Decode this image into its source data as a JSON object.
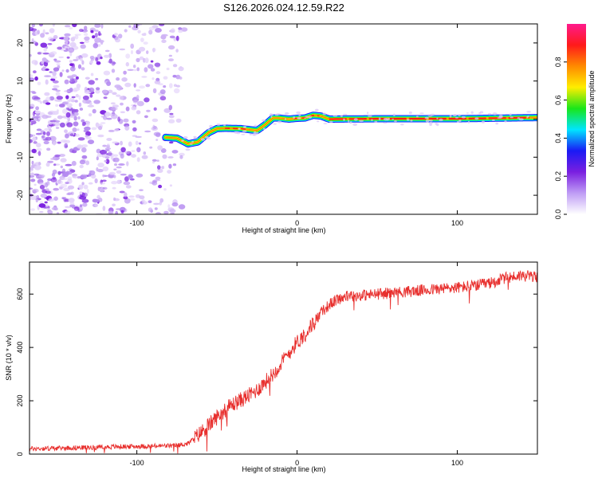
{
  "figure": {
    "title": "S126.2026.024.12.59.R22"
  },
  "chart_data": [
    {
      "type": "heatmap",
      "title": "S126.2026.024.12.59.R22",
      "xlabel": "Height of straight line (km)",
      "ylabel": "Frequency (Hz)",
      "xlim": [
        -167,
        150
      ],
      "ylim": [
        -25,
        25
      ],
      "x_ticks": [
        -100,
        0,
        100
      ],
      "x_tick_labels": [
        "-100",
        "0",
        "100"
      ],
      "y_ticks": [
        -20,
        -10,
        0,
        10,
        20
      ],
      "y_tick_labels": [
        "-20",
        "-10",
        "0",
        "10",
        "20"
      ],
      "noise_region_x": [
        -167,
        -70
      ],
      "ridge": {
        "x": [
          -82,
          -75,
          -68,
          -62,
          -55,
          -50,
          -45,
          -35,
          -25,
          -20,
          -15,
          -12,
          -5,
          0,
          5,
          10,
          15,
          20,
          50,
          100,
          150
        ],
        "y": [
          -4.8,
          -5.0,
          -6.5,
          -6.0,
          -3.5,
          -2.5,
          -2.4,
          -2.5,
          -3.0,
          -1.5,
          0.3,
          0.3,
          0.0,
          0.2,
          0.3,
          1.0,
          0.8,
          0.0,
          0.1,
          0.1,
          0.4
        ]
      },
      "colorbar": {
        "label": "Normalized spectral amplitude",
        "range": [
          0,
          1
        ],
        "ticks": [
          0.0,
          0.2,
          0.4,
          0.6,
          0.8
        ],
        "tick_labels": [
          "0.0",
          "0.2",
          "0.4",
          "0.6",
          "0.8"
        ],
        "colors": [
          "#ffffff",
          "#bf9cf5",
          "#7a1fe0",
          "#1a1af5",
          "#00e5ff",
          "#19e619",
          "#ffee00",
          "#ff8a00",
          "#ff1a1a",
          "#ff1a8c"
        ]
      }
    },
    {
      "type": "line",
      "xlabel": "Height of straight line (km)",
      "ylabel": "SNR (10 * v/v)",
      "xlim": [
        -167,
        150
      ],
      "ylim": [
        0,
        720
      ],
      "x_ticks": [
        -100,
        0,
        100
      ],
      "x_tick_labels": [
        "-100",
        "0",
        "100"
      ],
      "y_ticks": [
        0,
        200,
        400,
        600
      ],
      "y_tick_labels": [
        "0",
        "200",
        "400",
        "600"
      ],
      "series": [
        {
          "name": "SNR",
          "color": "#e8302e",
          "x": [
            -167,
            -150,
            -130,
            -110,
            -90,
            -75,
            -68,
            -62,
            -55,
            -48,
            -42,
            -36,
            -30,
            -25,
            -20,
            -15,
            -10,
            -5,
            0,
            5,
            10,
            15,
            20,
            25,
            30,
            40,
            50,
            60,
            70,
            80,
            90,
            100,
            110,
            120,
            130,
            140,
            150
          ],
          "y": [
            20,
            22,
            25,
            28,
            30,
            32,
            40,
            70,
            110,
            150,
            180,
            200,
            220,
            240,
            270,
            300,
            340,
            380,
            420,
            450,
            490,
            530,
            560,
            580,
            590,
            595,
            600,
            605,
            610,
            615,
            620,
            625,
            630,
            640,
            660,
            670,
            665
          ]
        }
      ]
    }
  ]
}
